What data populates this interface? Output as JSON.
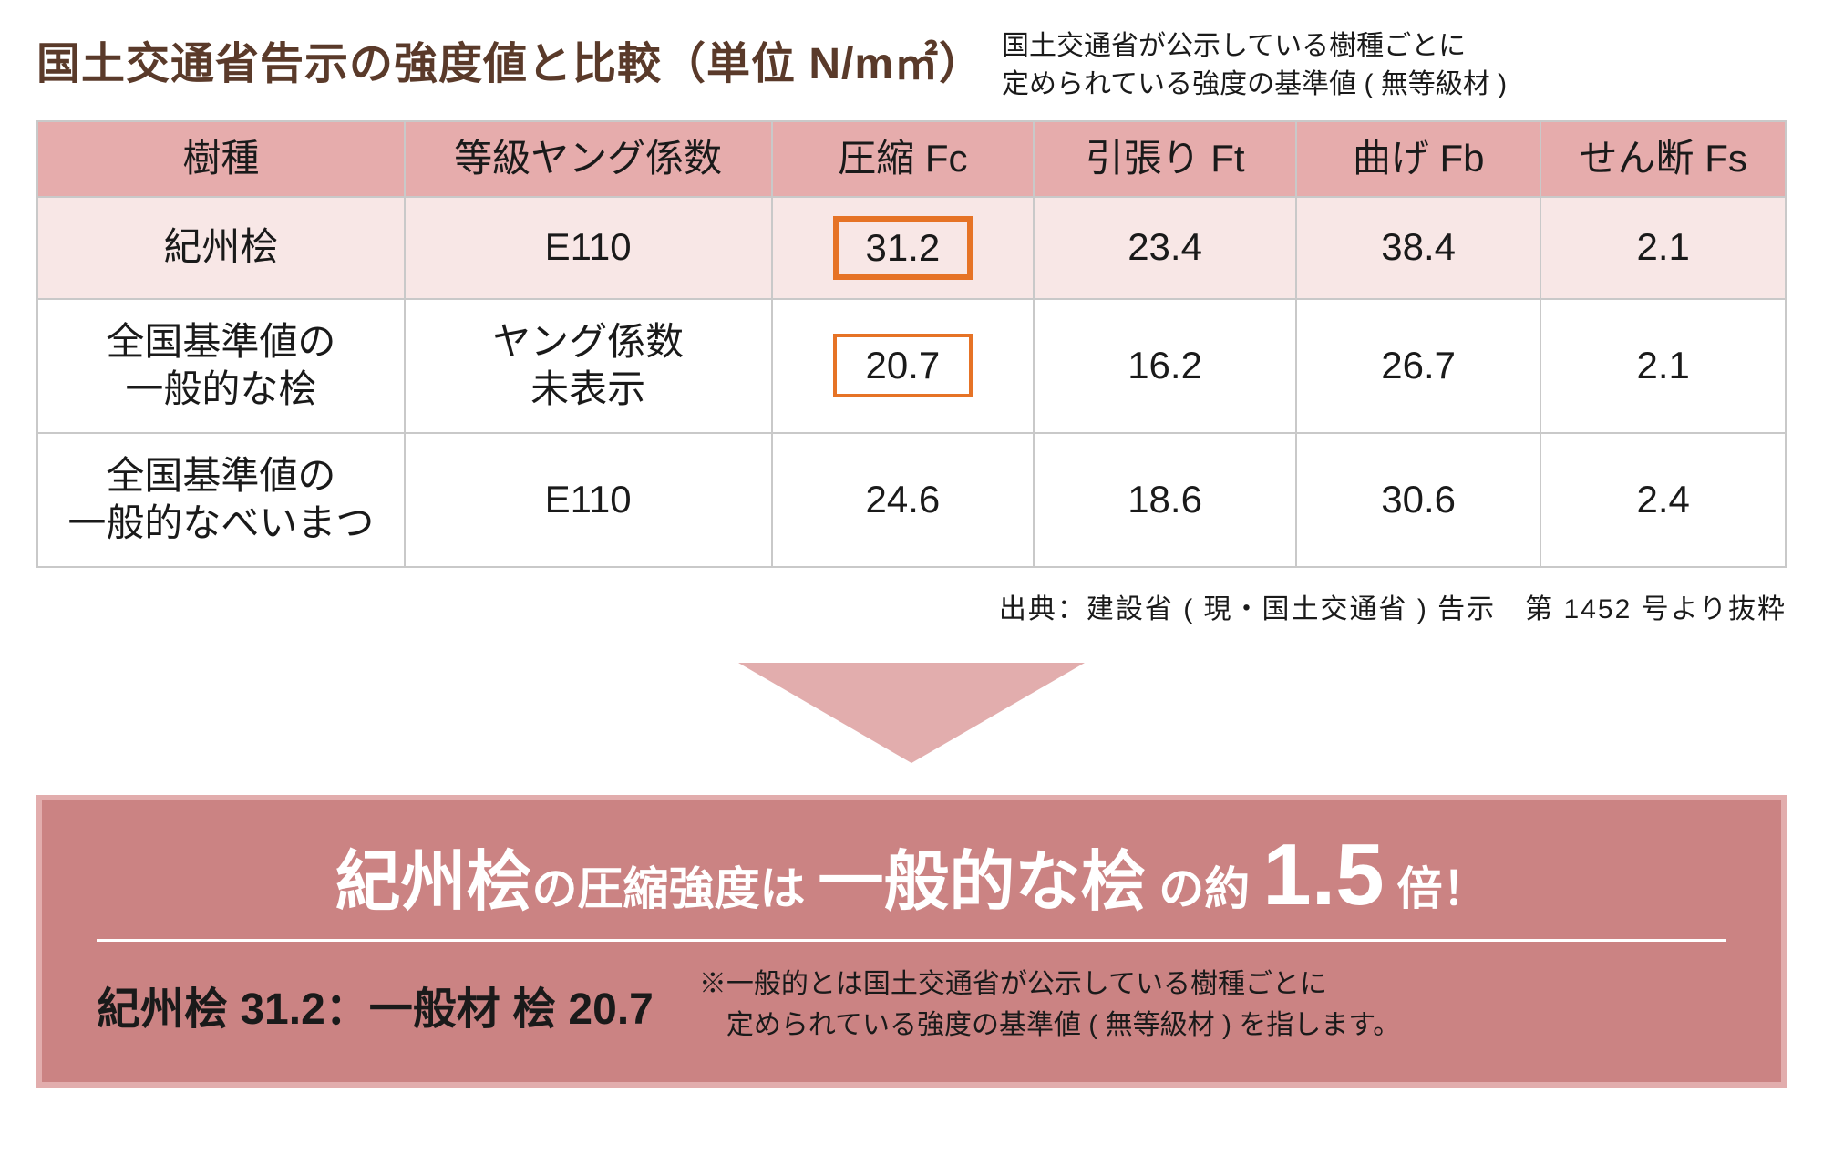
{
  "colors": {
    "title": "#5a3a2a",
    "header_bg": "#e6acac",
    "row_highlight_bg": "#f8e7e6",
    "border": "#c9c9c9",
    "highlight_border": "#e67326",
    "arrow": "#e2adad",
    "callout_bg": "#cb8383",
    "callout_border": "#e2adad",
    "text": "#1a1a1a",
    "white": "#ffffff"
  },
  "header": {
    "title": "国土交通省告示の強度値と比較（単位 N/m㎡）",
    "subtitle_line1": "国土交通省が公示している樹種ごとに",
    "subtitle_line2": "定められている強度の基準値 ( 無等級材 )"
  },
  "table": {
    "columns": [
      "樹種",
      "等級ヤング係数",
      "圧縮 Fc",
      "引張り Ft",
      "曲げ Fb",
      "せん断 Fs"
    ],
    "rows": [
      {
        "highlight": true,
        "cells": [
          "紀州桧",
          "E110",
          "31.2",
          "23.4",
          "38.4",
          "2.1"
        ],
        "fc_box": "strong"
      },
      {
        "highlight": false,
        "cells": [
          "全国基準値の\n一般的な桧",
          "ヤング係数\n未表示",
          "20.7",
          "16.2",
          "26.7",
          "2.1"
        ],
        "fc_box": "light"
      },
      {
        "highlight": false,
        "cells": [
          "全国基準値の\n一般的なべいまつ",
          "E110",
          "24.6",
          "18.6",
          "30.6",
          "2.4"
        ],
        "fc_box": null
      }
    ]
  },
  "citation": "出典：建設省 ( 現・国土交通省 ) 告示　第 1452 号より抜粋",
  "callout": {
    "headline": {
      "p1": "紀州桧",
      "p2": "の圧縮強度は ",
      "p3": "一般的な桧",
      "p4": " の約 ",
      "p5": "1.5",
      "p6": " 倍！"
    },
    "ratio": "紀州桧 31.2：一般材 桧 20.7",
    "note_line1": "※一般的とは国土交通省が公示している樹種ごとに",
    "note_line2": "　定められている強度の基準値 ( 無等級材 ) を指します。"
  }
}
